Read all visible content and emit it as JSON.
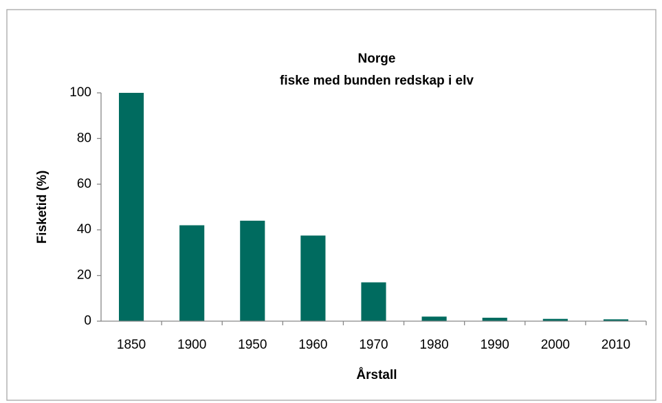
{
  "chart_data": {
    "type": "bar",
    "title": "Norge",
    "subtitle": "fiske med bunden redskap i elv",
    "x_label": "Årstall",
    "y_label": "Fisketid (%)",
    "categories": [
      "1850",
      "1900",
      "1950",
      "1960",
      "1970",
      "1980",
      "1990",
      "2000",
      "2010"
    ],
    "values": [
      100,
      42,
      44,
      37.5,
      17,
      2,
      1.5,
      1,
      0.8
    ],
    "color": "#006b5f",
    "ylim": [
      0,
      100
    ],
    "yticks": [
      0,
      20,
      40,
      60,
      80,
      100
    ],
    "grid": false
  }
}
